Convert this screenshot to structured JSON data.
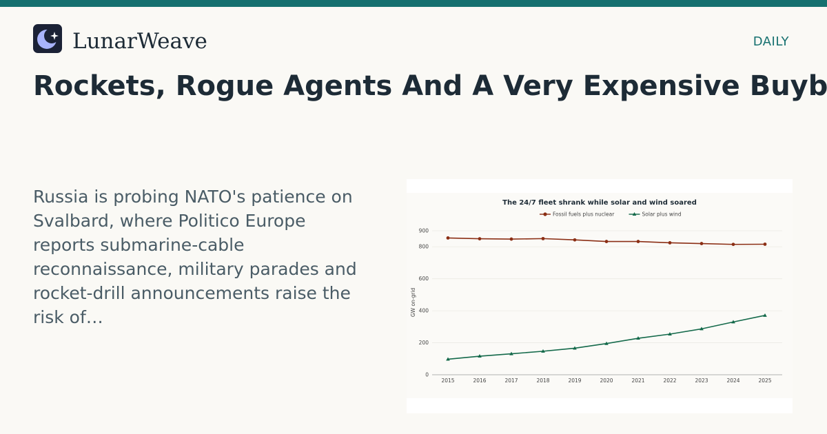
{
  "brand": {
    "name": "LunarWeave",
    "logo_icon": "moon-star-icon"
  },
  "section_label": "DAILY",
  "headline": "Rockets, Rogue Agents And A Very Expensive Buyback",
  "excerpt": "Russia is probing NATO's patience on Svalbard, where Politico Europe reports submarine-cable reconnaissance, military parades and rocket-drill announcements raise the risk of…",
  "colors": {
    "accent": "#15706f",
    "fossil": "#8b2e14",
    "renewable": "#13694a"
  },
  "chart_data": {
    "type": "line",
    "title": "The 24/7 fleet shrank while solar and wind soared",
    "ylabel": "GW on-grid",
    "xlabel": "",
    "x": [
      "2015",
      "2016",
      "2017",
      "2018",
      "2019",
      "2020",
      "2021",
      "2022",
      "2023",
      "2024",
      "2025"
    ],
    "yticks": [
      0,
      200,
      400,
      600,
      800,
      900
    ],
    "ylim": [
      0,
      900
    ],
    "grid": true,
    "legend": "top-center",
    "series": [
      {
        "name": "Fossil fuels plus nuclear",
        "marker": "circle",
        "color": "#8b2e14",
        "values": [
          855,
          850,
          848,
          851,
          843,
          833,
          833,
          825,
          820,
          815,
          816
        ]
      },
      {
        "name": "Solar plus wind",
        "marker": "triangle",
        "color": "#13694a",
        "values": [
          97,
          116,
          131,
          147,
          166,
          195,
          228,
          254,
          287,
          330,
          371
        ]
      }
    ]
  }
}
